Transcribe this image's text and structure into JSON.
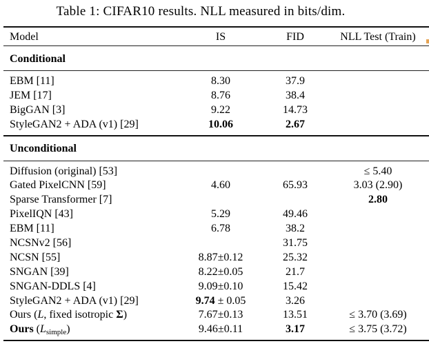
{
  "caption": {
    "label": "Table 1:",
    "text": " CIFAR10 results. NLL measured in bits/dim."
  },
  "header": {
    "model": "Model",
    "is": "IS",
    "fid": "FID",
    "nll": "NLL Test (Train)"
  },
  "sections": [
    {
      "label": "Conditional",
      "rows": [
        {
          "model": [
            {
              "t": "EBM [11]"
            }
          ],
          "is": [
            {
              "t": "8.30"
            }
          ],
          "fid": [
            {
              "t": "37.9"
            }
          ],
          "nll": []
        },
        {
          "model": [
            {
              "t": "JEM [17]"
            }
          ],
          "is": [
            {
              "t": "8.76"
            }
          ],
          "fid": [
            {
              "t": "38.4"
            }
          ],
          "nll": []
        },
        {
          "model": [
            {
              "t": "BigGAN [3]"
            }
          ],
          "is": [
            {
              "t": "9.22"
            }
          ],
          "fid": [
            {
              "t": "14.73"
            }
          ],
          "nll": []
        },
        {
          "model": [
            {
              "t": "StyleGAN2 + ADA (v1) [29]"
            }
          ],
          "is": [
            {
              "t": "10.06",
              "b": true
            }
          ],
          "fid": [
            {
              "t": "2.67",
              "b": true
            }
          ],
          "nll": []
        }
      ]
    },
    {
      "label": "Unconditional",
      "rows": [
        {
          "model": [
            {
              "t": "Diffusion (original) [53]"
            }
          ],
          "is": [],
          "fid": [],
          "nll": [
            {
              "t": "≤ 5.40"
            }
          ]
        },
        {
          "model": [
            {
              "t": "Gated PixelCNN [59]"
            }
          ],
          "is": [
            {
              "t": "4.60"
            }
          ],
          "fid": [
            {
              "t": "65.93"
            }
          ],
          "nll": [
            {
              "t": "3.03 (2.90)"
            }
          ]
        },
        {
          "model": [
            {
              "t": "Sparse Transformer [7]"
            }
          ],
          "is": [],
          "fid": [],
          "nll": [
            {
              "t": "2.80",
              "b": true
            }
          ]
        },
        {
          "model": [
            {
              "t": "PixelIQN [43]"
            }
          ],
          "is": [
            {
              "t": "5.29"
            }
          ],
          "fid": [
            {
              "t": "49.46"
            }
          ],
          "nll": []
        },
        {
          "model": [
            {
              "t": "EBM [11]"
            }
          ],
          "is": [
            {
              "t": "6.78"
            }
          ],
          "fid": [
            {
              "t": "38.2"
            }
          ],
          "nll": []
        },
        {
          "model": [
            {
              "t": "NCSNv2 [56]"
            }
          ],
          "is": [],
          "fid": [
            {
              "t": "31.75"
            }
          ],
          "nll": []
        },
        {
          "model": [
            {
              "t": "NCSN [55]"
            }
          ],
          "is": [
            {
              "t": "8.87±0.12"
            }
          ],
          "fid": [
            {
              "t": "25.32"
            }
          ],
          "nll": []
        },
        {
          "model": [
            {
              "t": "SNGAN [39]"
            }
          ],
          "is": [
            {
              "t": "8.22±0.05"
            }
          ],
          "fid": [
            {
              "t": "21.7"
            }
          ],
          "nll": []
        },
        {
          "model": [
            {
              "t": "SNGAN-DDLS [4]"
            }
          ],
          "is": [
            {
              "t": "9.09±0.10"
            }
          ],
          "fid": [
            {
              "t": "15.42"
            }
          ],
          "nll": []
        },
        {
          "model": [
            {
              "t": "StyleGAN2 + ADA (v1) [29]"
            }
          ],
          "is": [
            {
              "t": "9.74",
              "b": true
            },
            {
              "t": " ± 0.05"
            }
          ],
          "fid": [
            {
              "t": "3.26"
            }
          ],
          "nll": []
        },
        {
          "model": [
            {
              "t": "Ours ("
            },
            {
              "t": "L",
              "i": true
            },
            {
              "t": ", fixed isotropic "
            },
            {
              "t": "Σ",
              "b": true
            },
            {
              "t": ")"
            }
          ],
          "is": [
            {
              "t": "7.67±0.13"
            }
          ],
          "fid": [
            {
              "t": "13.51"
            }
          ],
          "nll": [
            {
              "t": "≤ 3.70 (3.69)"
            }
          ]
        },
        {
          "model": [
            {
              "t": "Ours",
              "b": true
            },
            {
              "t": " ("
            },
            {
              "t": "L",
              "i": true
            },
            {
              "t": "simple",
              "sub": true
            },
            {
              "t": ")"
            }
          ],
          "is": [
            {
              "t": "9.46±0.11"
            }
          ],
          "fid": [
            {
              "t": "3.17",
              "b": true
            }
          ],
          "nll": [
            {
              "t": "≤ 3.75 (3.72)"
            }
          ]
        }
      ]
    }
  ],
  "colors": {
    "background": "#ffffff",
    "text": "#000000",
    "rule": "#1f1f1f",
    "edge_artifact": "#e6a455"
  }
}
